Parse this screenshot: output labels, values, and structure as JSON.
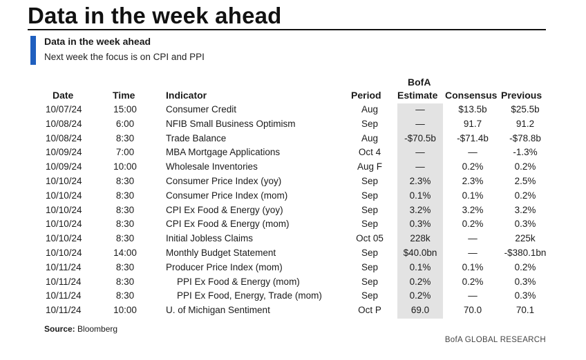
{
  "page": {
    "title": "Data in the week ahead",
    "subtitle": "Data in the week ahead",
    "description": "Next week the focus is on CPI and PPI",
    "source_label": "Source:",
    "source_value": "Bloomberg",
    "footer": "BofA GLOBAL RESEARCH"
  },
  "table": {
    "headers": {
      "date": "Date",
      "time": "Time",
      "indicator": "Indicator",
      "period": "Period",
      "estimate_top": "BofA",
      "estimate": "Estimate",
      "consensus": "Consensus",
      "previous": "Previous"
    },
    "rows": [
      {
        "date": "10/07/24",
        "time": "15:00",
        "indicator": "Consumer Credit",
        "period": "Aug",
        "estimate": "—",
        "consensus": "$13.5b",
        "previous": "$25.5b"
      },
      {
        "date": "10/08/24",
        "time": "6:00",
        "indicator": "NFIB Small Business Optimism",
        "period": "Sep",
        "estimate": "—",
        "consensus": "91.7",
        "previous": "91.2"
      },
      {
        "date": "10/08/24",
        "time": "8:30",
        "indicator": "Trade Balance",
        "period": "Aug",
        "estimate": "-$70.5b",
        "consensus": "-$71.4b",
        "previous": "-$78.8b"
      },
      {
        "date": "10/09/24",
        "time": "7:00",
        "indicator": "MBA Mortgage Applications",
        "period": "Oct 4",
        "estimate": "—",
        "consensus": "—",
        "previous": "-1.3%"
      },
      {
        "date": "10/09/24",
        "time": "10:00",
        "indicator": "Wholesale Inventories",
        "period": "Aug F",
        "estimate": "—",
        "consensus": "0.2%",
        "previous": "0.2%"
      },
      {
        "date": "10/10/24",
        "time": "8:30",
        "indicator": "Consumer Price Index (yoy)",
        "period": "Sep",
        "estimate": "2.3%",
        "consensus": "2.3%",
        "previous": "2.5%"
      },
      {
        "date": "10/10/24",
        "time": "8:30",
        "indicator": "Consumer Price Index (mom)",
        "period": "Sep",
        "estimate": "0.1%",
        "consensus": "0.1%",
        "previous": "0.2%"
      },
      {
        "date": "10/10/24",
        "time": "8:30",
        "indicator": "CPI Ex Food & Energy (yoy)",
        "period": "Sep",
        "estimate": "3.2%",
        "consensus": "3.2%",
        "previous": "3.2%"
      },
      {
        "date": "10/10/24",
        "time": "8:30",
        "indicator": "CPI Ex Food & Energy (mom)",
        "period": "Sep",
        "estimate": "0.3%",
        "consensus": "0.2%",
        "previous": "0.3%"
      },
      {
        "date": "10/10/24",
        "time": "8:30",
        "indicator": "Initial Jobless Claims",
        "period": "Oct 05",
        "estimate": "228k",
        "consensus": "—",
        "previous": "225k"
      },
      {
        "date": "10/10/24",
        "time": "14:00",
        "indicator": "Monthly Budget Statement",
        "period": "Sep",
        "estimate": "$40.0bn",
        "consensus": "—",
        "previous": "-$380.1bn"
      },
      {
        "date": "10/11/24",
        "time": "8:30",
        "indicator": "Producer Price Index (mom)",
        "period": "Sep",
        "estimate": "0.1%",
        "consensus": "0.1%",
        "previous": "0.2%"
      },
      {
        "date": "10/11/24",
        "time": "8:30",
        "indicator": "PPI Ex Food & Energy (mom)",
        "period": "Sep",
        "estimate": "0.2%",
        "consensus": "0.2%",
        "previous": "0.3%",
        "indent": true
      },
      {
        "date": "10/11/24",
        "time": "8:30",
        "indicator": "PPI Ex Food, Energy, Trade (mom)",
        "period": "Sep",
        "estimate": "0.2%",
        "consensus": "—",
        "previous": "0.3%",
        "indent": true
      },
      {
        "date": "10/11/24",
        "time": "10:00",
        "indicator": "U. of Michigan Sentiment",
        "period": "Oct P",
        "estimate": "69.0",
        "consensus": "70.0",
        "previous": "70.1"
      }
    ]
  }
}
